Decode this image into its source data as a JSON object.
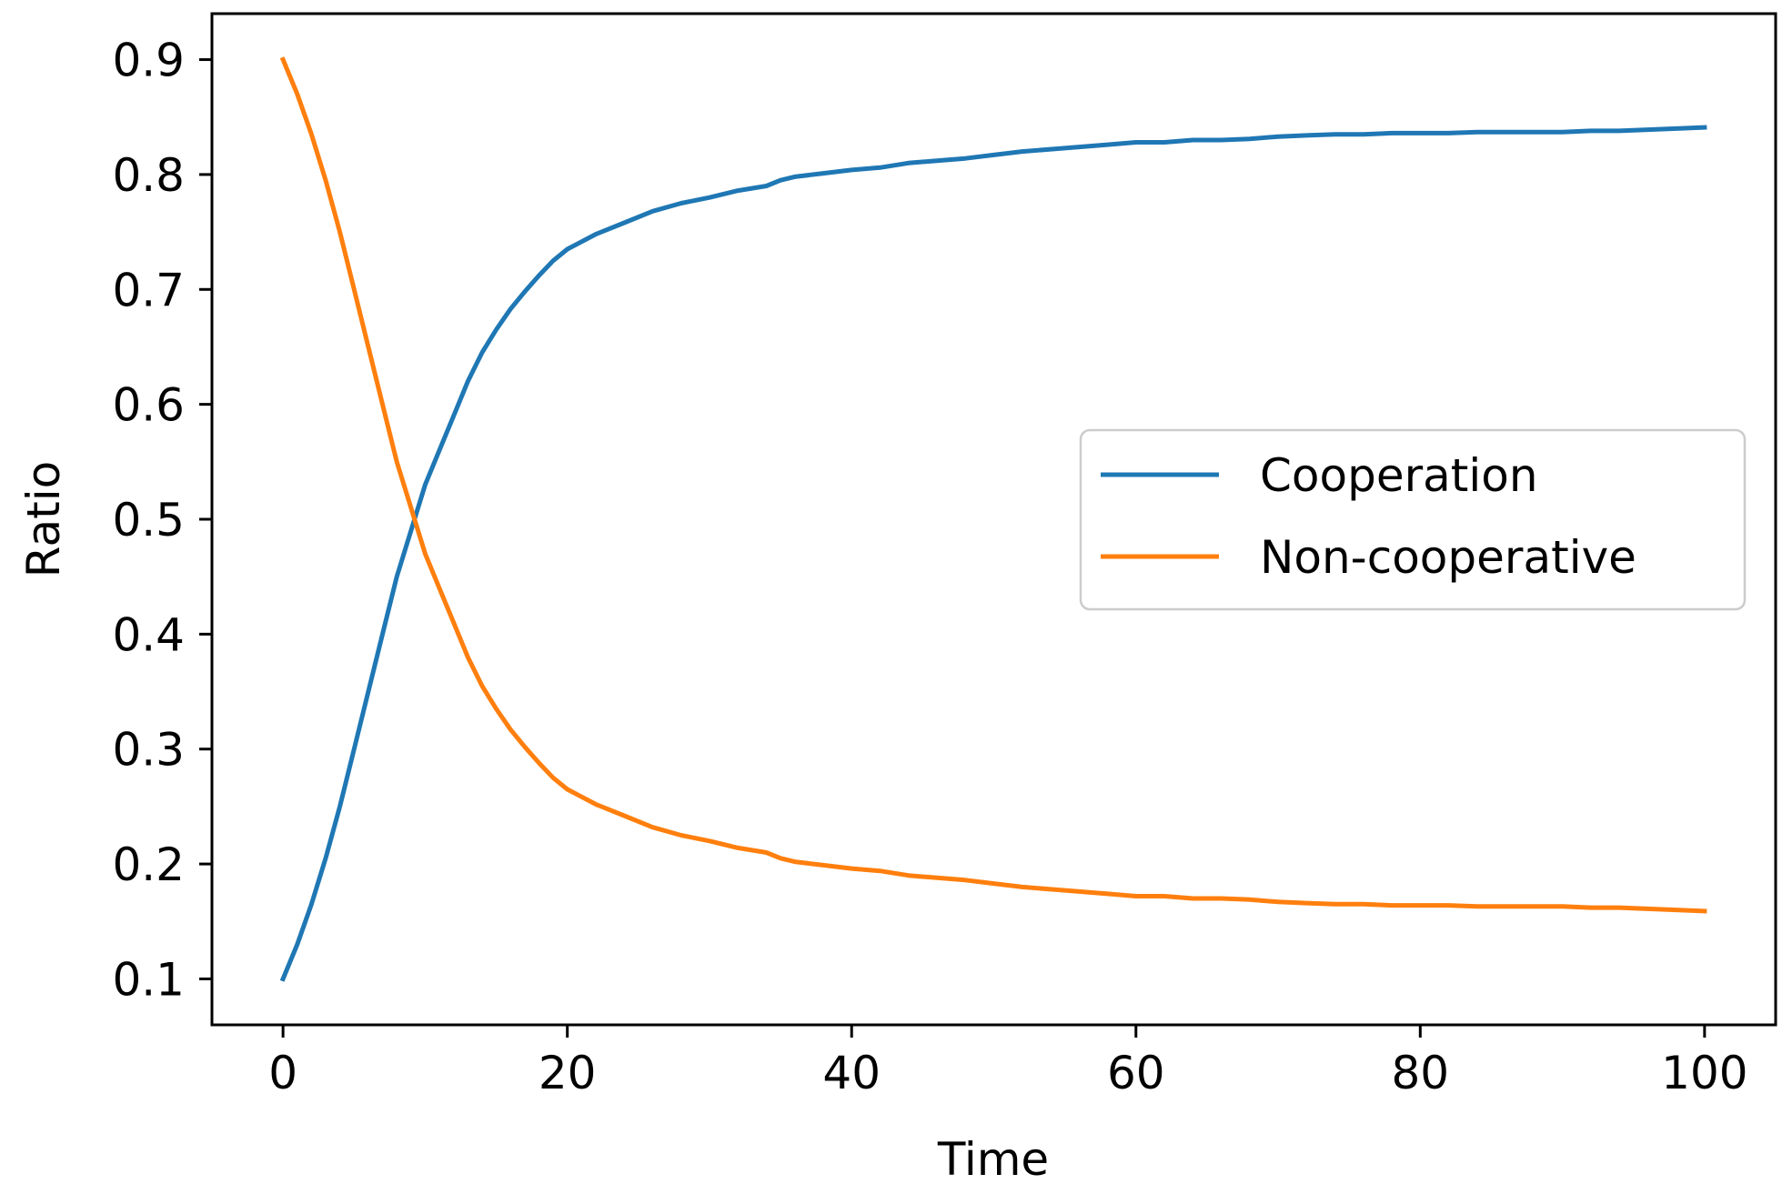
{
  "chart_data": {
    "type": "line",
    "title": "",
    "xlabel": "Time",
    "ylabel": "Ratio",
    "xlim": [
      -5,
      105
    ],
    "ylim": [
      0.06,
      0.94
    ],
    "xticks": [
      0,
      20,
      40,
      60,
      80,
      100
    ],
    "xtick_labels": [
      "0",
      "20",
      "40",
      "60",
      "80",
      "100"
    ],
    "yticks": [
      0.1,
      0.2,
      0.3,
      0.4,
      0.5,
      0.6,
      0.7,
      0.8,
      0.9
    ],
    "ytick_labels": [
      "0.1",
      "0.2",
      "0.3",
      "0.4",
      "0.5",
      "0.6",
      "0.7",
      "0.8",
      "0.9"
    ],
    "grid": false,
    "legend": "center-right",
    "x": [
      0,
      1,
      2,
      3,
      4,
      5,
      6,
      7,
      8,
      9,
      10,
      11,
      12,
      13,
      14,
      15,
      16,
      17,
      18,
      19,
      20,
      22,
      24,
      26,
      28,
      30,
      32,
      34,
      35,
      36,
      38,
      40,
      42,
      44,
      46,
      48,
      50,
      52,
      54,
      56,
      58,
      60,
      62,
      64,
      66,
      68,
      70,
      72,
      74,
      76,
      78,
      80,
      82,
      84,
      86,
      88,
      90,
      92,
      94,
      96,
      98,
      100
    ],
    "series": [
      {
        "name": "Cooperation",
        "color": "#1f77b4",
        "values": [
          0.1,
          0.13,
          0.165,
          0.205,
          0.25,
          0.3,
          0.35,
          0.4,
          0.45,
          0.49,
          0.53,
          0.56,
          0.59,
          0.62,
          0.645,
          0.665,
          0.683,
          0.698,
          0.712,
          0.725,
          0.735,
          0.748,
          0.758,
          0.768,
          0.775,
          0.78,
          0.786,
          0.79,
          0.795,
          0.798,
          0.801,
          0.804,
          0.806,
          0.81,
          0.812,
          0.814,
          0.817,
          0.82,
          0.822,
          0.824,
          0.826,
          0.828,
          0.828,
          0.83,
          0.83,
          0.831,
          0.833,
          0.834,
          0.835,
          0.835,
          0.836,
          0.836,
          0.836,
          0.837,
          0.837,
          0.837,
          0.837,
          0.838,
          0.838,
          0.839,
          0.84,
          0.841
        ]
      },
      {
        "name": "Non-cooperative",
        "color": "#ff7f0e",
        "values": [
          0.9,
          0.87,
          0.835,
          0.795,
          0.75,
          0.7,
          0.65,
          0.6,
          0.55,
          0.51,
          0.47,
          0.44,
          0.41,
          0.38,
          0.355,
          0.335,
          0.317,
          0.302,
          0.288,
          0.275,
          0.265,
          0.252,
          0.242,
          0.232,
          0.225,
          0.22,
          0.214,
          0.21,
          0.205,
          0.202,
          0.199,
          0.196,
          0.194,
          0.19,
          0.188,
          0.186,
          0.183,
          0.18,
          0.178,
          0.176,
          0.174,
          0.172,
          0.172,
          0.17,
          0.17,
          0.169,
          0.167,
          0.166,
          0.165,
          0.165,
          0.164,
          0.164,
          0.164,
          0.163,
          0.163,
          0.163,
          0.163,
          0.162,
          0.162,
          0.161,
          0.16,
          0.159
        ]
      }
    ]
  }
}
